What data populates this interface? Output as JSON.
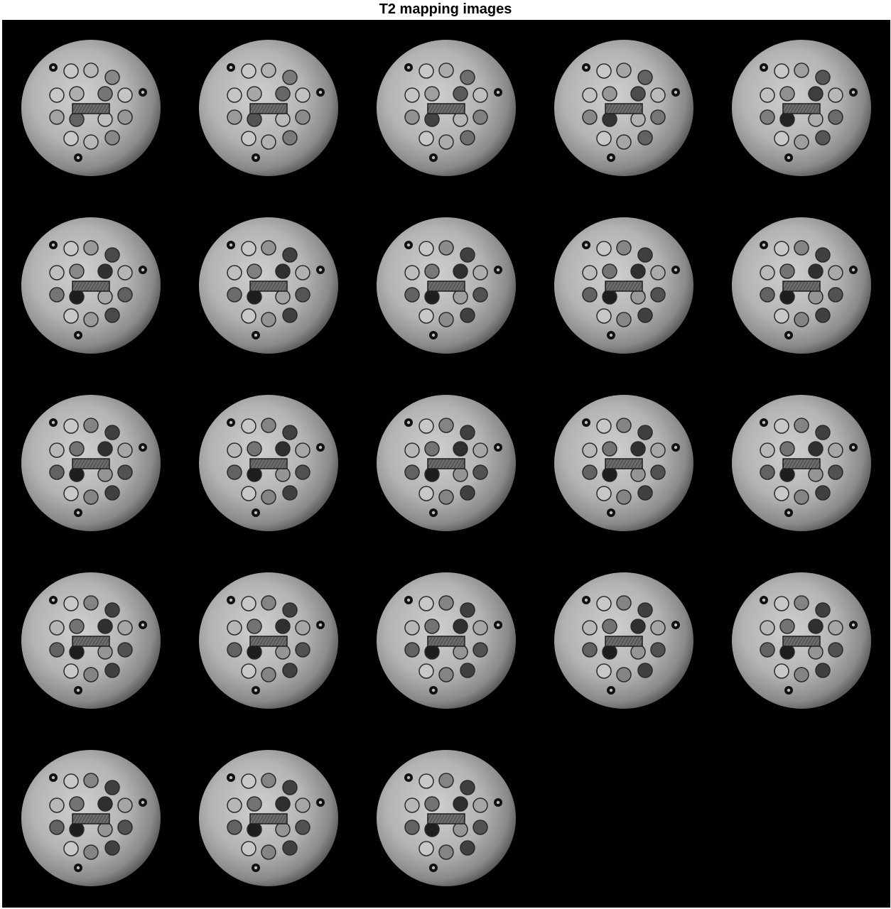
{
  "figure": {
    "title": "T2 mapping images"
  },
  "montage": {
    "grid": {
      "rows": 5,
      "cols": 5
    },
    "frame_count": 23,
    "colormap": "gray",
    "background_color": "#000000"
  }
}
